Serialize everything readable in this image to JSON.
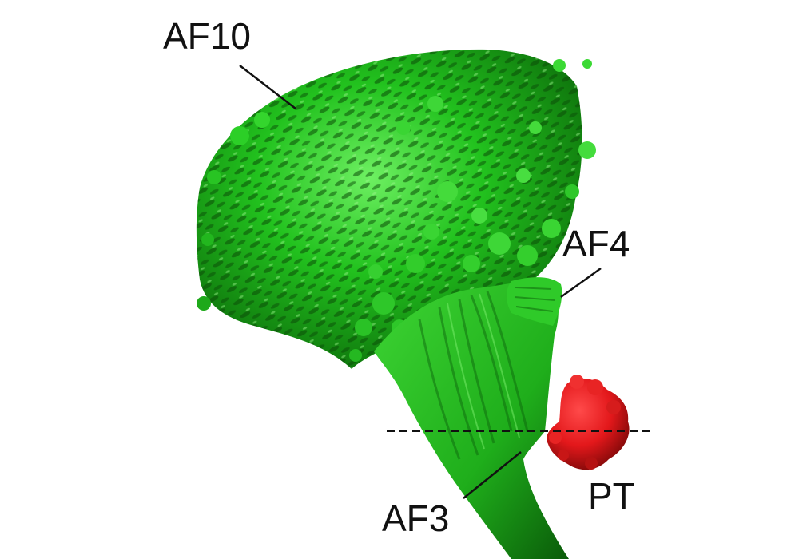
{
  "labels": {
    "af10": "AF10",
    "af4": "AF4",
    "af3": "AF3",
    "pt": "PT"
  },
  "colors": {
    "background": "#ffffff",
    "neuropil": "#22c21e",
    "neuropil_dark": "#0b5d0a",
    "neuropil_light": "#6ef062",
    "pt_region": "#e3181b",
    "pt_dark": "#8a0a0c",
    "leader_line": "#111111"
  }
}
